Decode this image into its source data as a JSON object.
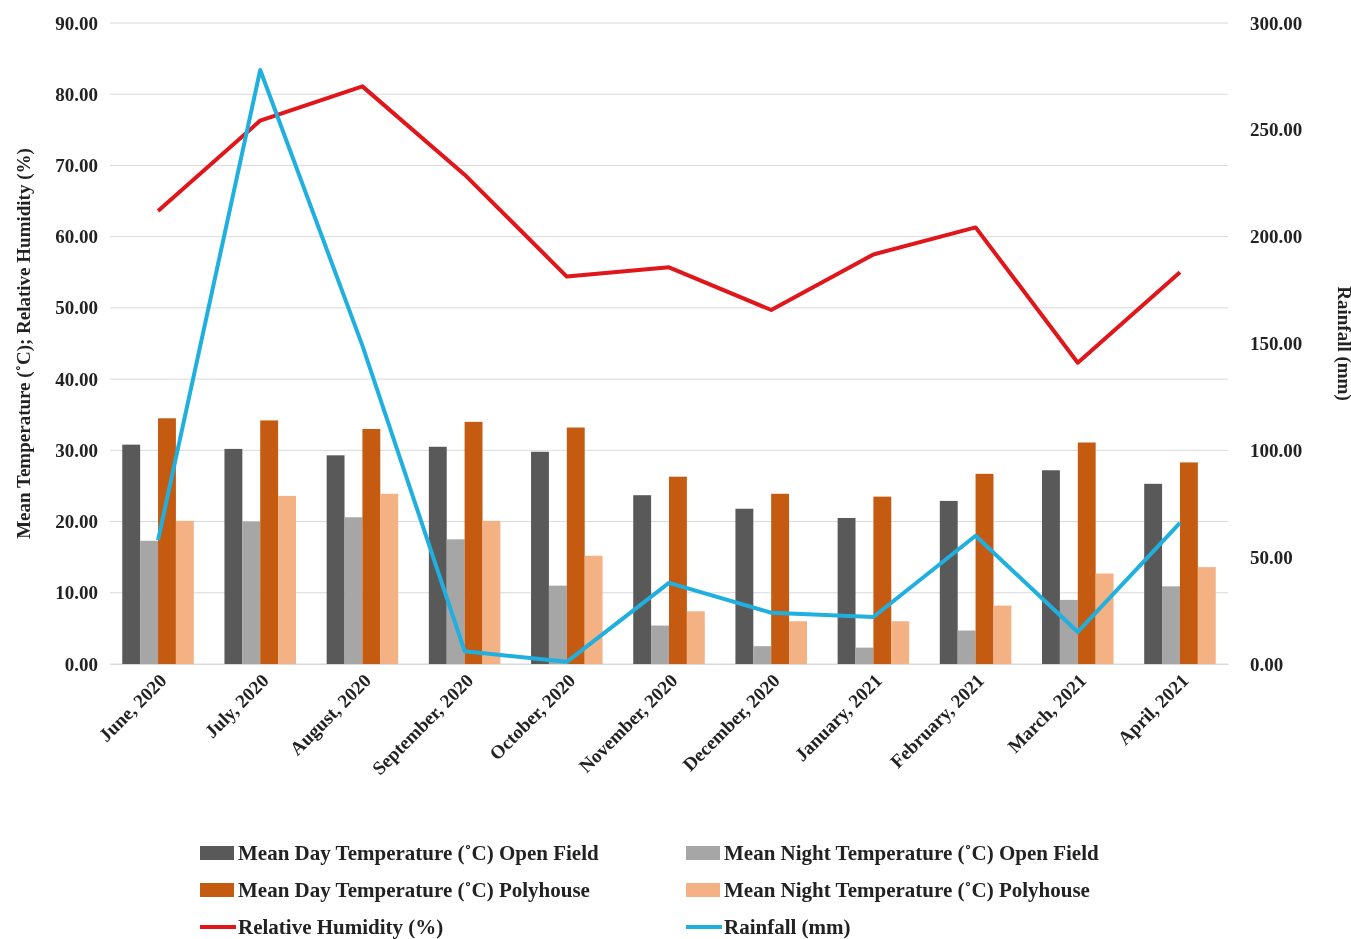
{
  "chart_data": {
    "type": "bar",
    "ylabel": "Mean Temperature (˚C); Relative Humidity  (%)",
    "y2label": "Rainfall (mm)",
    "categories": [
      "June, 2020",
      "July, 2020",
      "August, 2020",
      "September, 2020",
      "October, 2020",
      "November, 2020",
      "December, 2020",
      "January, 2021",
      "February, 2021",
      "March, 2021",
      "April, 2021"
    ],
    "series": [
      {
        "name": "Mean Day Temperature (˚C) Open Field",
        "color": "#595959",
        "values": [
          30.8,
          30.2,
          29.3,
          30.5,
          29.8,
          23.7,
          21.8,
          20.5,
          22.9,
          27.2,
          25.3
        ]
      },
      {
        "name": "Mean Night Temperature (˚C) Open Field",
        "color": "#a6a6a6",
        "values": [
          17.3,
          20.0,
          20.6,
          17.5,
          11.0,
          5.4,
          2.5,
          2.3,
          4.7,
          9.0,
          10.9
        ]
      },
      {
        "name": "Mean Day Temperature (˚C) Polyhouse",
        "color": "#c55a11",
        "values": [
          34.5,
          34.2,
          33.0,
          34.0,
          33.2,
          26.3,
          23.9,
          23.5,
          26.7,
          31.1,
          28.3
        ]
      },
      {
        "name": "Mean Night Temperature (˚C) Polyhouse",
        "color": "#f4b183",
        "values": [
          20.1,
          23.6,
          23.9,
          20.1,
          15.2,
          7.4,
          6.0,
          6.0,
          8.2,
          12.7,
          13.6
        ]
      },
      {
        "name": "Relative Humidity (%)",
        "type": "line",
        "color": "#e0161a",
        "values": [
          63.6,
          76.3,
          81.1,
          68.7,
          54.4,
          55.7,
          49.7,
          57.5,
          61.3,
          42.3,
          55.0
        ]
      },
      {
        "name": "Rainfall (mm)",
        "type": "line",
        "axis": "y2",
        "color": "#1fb0e0",
        "values": [
          58,
          278,
          149,
          6,
          1,
          38,
          24,
          22,
          60,
          15,
          66
        ]
      }
    ],
    "ylim": [
      0,
      90
    ],
    "yticks": [
      {
        "value": 0,
        "label": "0.00"
      },
      {
        "value": 10,
        "label": "10.00"
      },
      {
        "value": 20,
        "label": "20.00"
      },
      {
        "value": 30,
        "label": "30.00"
      },
      {
        "value": 40,
        "label": "40.00"
      },
      {
        "value": 50,
        "label": "50.00"
      },
      {
        "value": 60,
        "label": "60.00"
      },
      {
        "value": 70,
        "label": "70.00"
      },
      {
        "value": 80,
        "label": "80.00"
      },
      {
        "value": 90,
        "label": "90.00"
      }
    ],
    "y2lim": [
      0,
      300
    ],
    "y2ticks": [
      {
        "value": 0,
        "label": "0.00"
      },
      {
        "value": 50,
        "label": "50.00"
      },
      {
        "value": 100,
        "label": "100.00"
      },
      {
        "value": 150,
        "label": "150.00"
      },
      {
        "value": 200,
        "label": "200.00"
      },
      {
        "value": 250,
        "label": "250.00"
      },
      {
        "value": 300,
        "label": "300.00"
      }
    ],
    "grid": "y",
    "legend": "bottom",
    "line_style": "solid",
    "marker": "none"
  }
}
